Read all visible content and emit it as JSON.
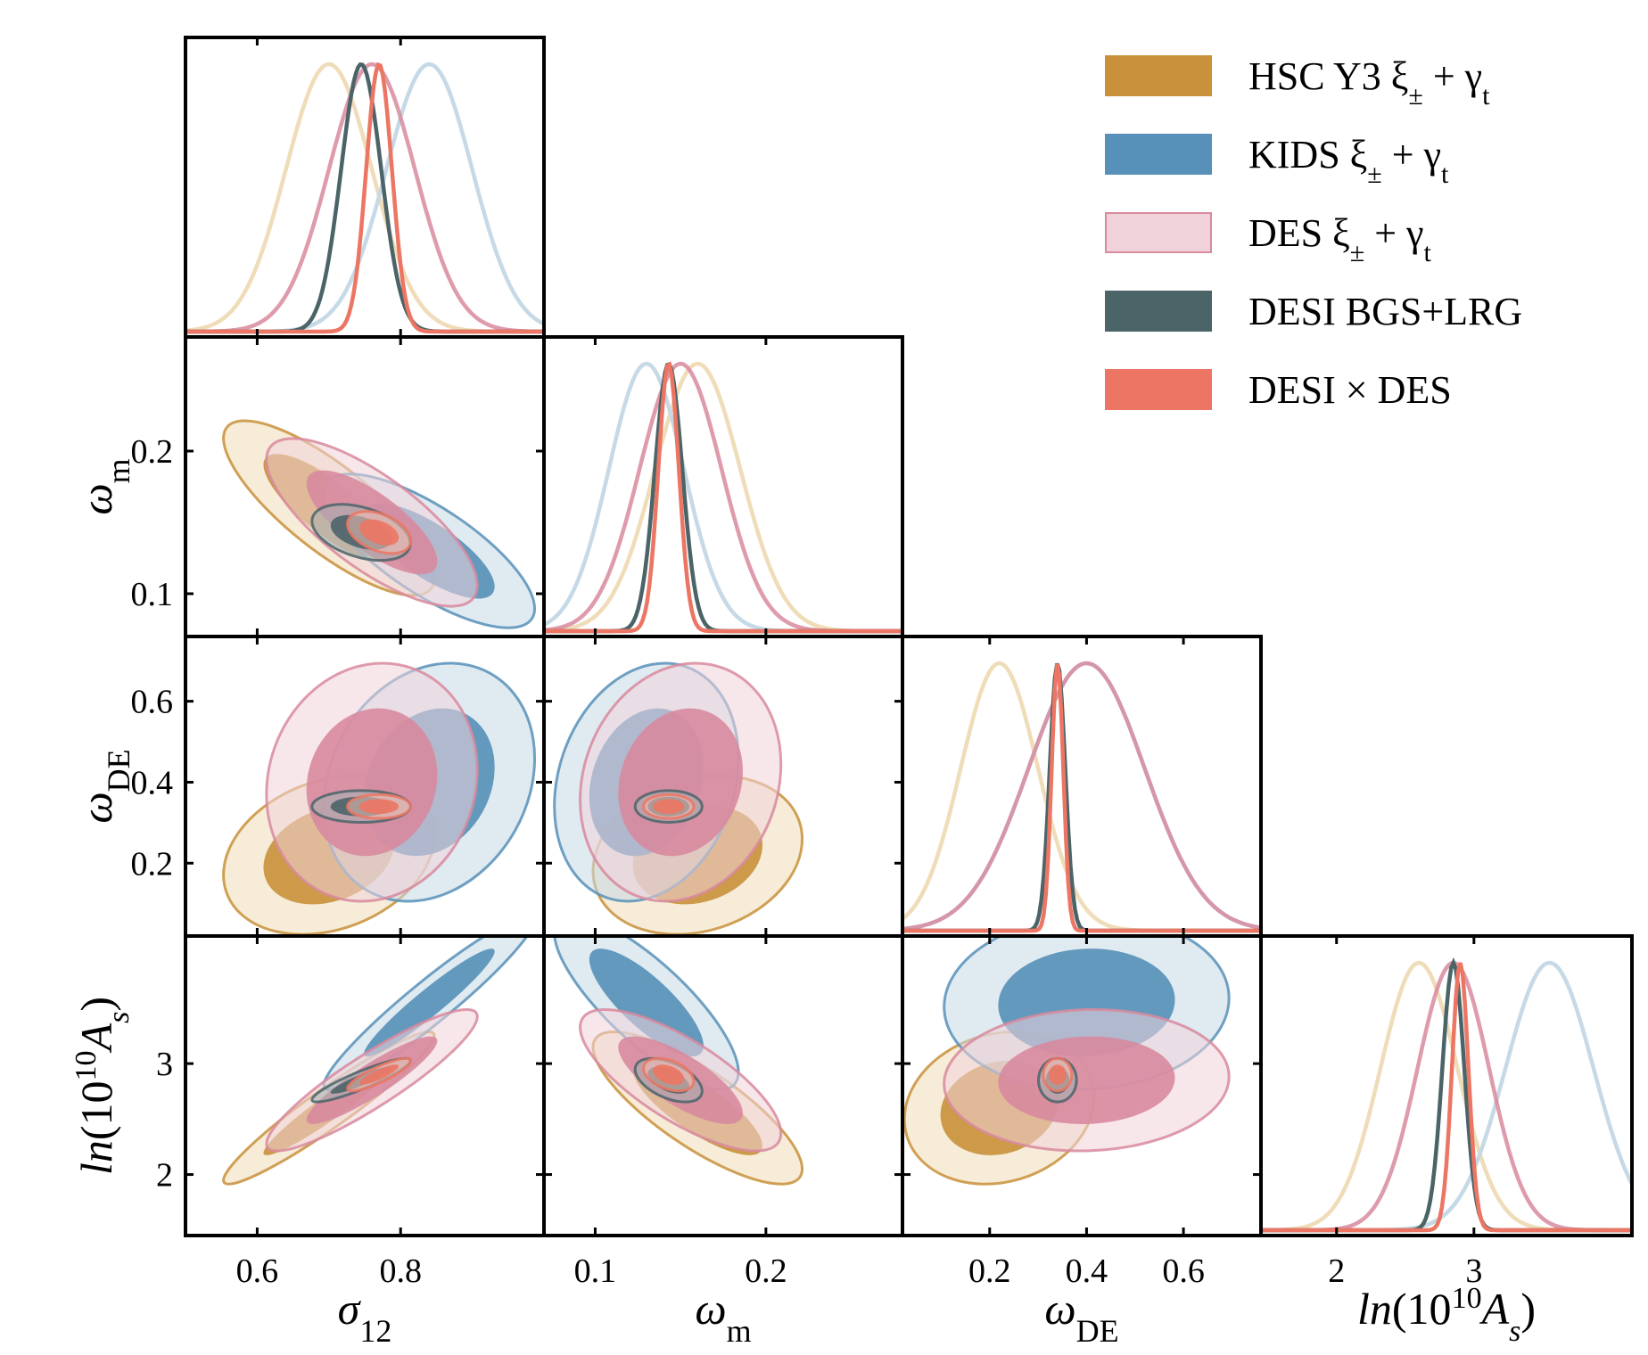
{
  "chart_data": {
    "type": "corner",
    "title": "",
    "parameters": [
      {
        "key": "s12",
        "label_main": "σ",
        "label_sub": "12",
        "range": [
          0.5,
          1.0
        ],
        "ticks": [
          0.6,
          0.8
        ],
        "tick_labels": [
          "0.6",
          "0.8"
        ]
      },
      {
        "key": "om",
        "label_main": "ω",
        "label_sub": "m",
        "range": [
          0.07,
          0.28
        ],
        "ticks": [
          0.1,
          0.2
        ],
        "tick_labels": [
          "0.1",
          "0.2"
        ]
      },
      {
        "key": "ode",
        "label_main": "ω",
        "label_sub": "DE",
        "range": [
          0.02,
          0.76
        ],
        "ticks": [
          0.2,
          0.4,
          0.6
        ],
        "tick_labels": [
          "0.2",
          "0.4",
          "0.6"
        ]
      },
      {
        "key": "lnAs",
        "label_main": "ln(10",
        "label_sup": "10",
        "label_tail": "A",
        "label_sub": "s",
        "label_close": ")",
        "range": [
          1.45,
          4.15
        ],
        "ticks": [
          2,
          3
        ],
        "tick_labels": [
          "2",
          "3"
        ]
      }
    ],
    "series": [
      {
        "name": "HSC Y3 ξ± + γt",
        "legend_main": "HSC Y3 ξ",
        "legend_sub": "±",
        "legend_mid": " + γ",
        "legend_sub2": "t",
        "color": "#c8913a",
        "light": "#efdcb8",
        "mean": [
          0.7,
          0.16,
          0.22,
          2.6
        ],
        "sd": [
          0.06,
          0.025,
          0.08,
          0.28
        ],
        "corr": {
          "s12-om": -0.8,
          "s12-ode": 0.25,
          "s12-lnAs": 0.95,
          "om-ode": 0.2,
          "om-lnAs": -0.8,
          "ode-lnAs": 0.15
        }
      },
      {
        "name": "KIDS ξ± + γt",
        "legend_main": "KIDS ξ",
        "legend_sub": "±",
        "legend_mid": " + γ",
        "legend_sub2": "t",
        "color": "#5790b8",
        "light": "#c6d9e6",
        "mean": [
          0.84,
          0.13,
          0.4,
          3.55
        ],
        "sd": [
          0.06,
          0.022,
          0.12,
          0.32
        ],
        "corr": {
          "s12-om": -0.75,
          "s12-ode": 0.2,
          "s12-lnAs": 0.95,
          "om-ode": 0.2,
          "om-lnAs": -0.8,
          "ode-lnAs": 0.05
        }
      },
      {
        "name": "DES ξ± + γt",
        "legend_main": "DES ξ",
        "legend_sub": "±",
        "legend_mid": " + γ",
        "legend_sub2": "t",
        "color": "#d88a9e",
        "light": "#f0d3da",
        "mean": [
          0.76,
          0.15,
          0.4,
          2.85
        ],
        "sd": [
          0.06,
          0.024,
          0.12,
          0.26
        ],
        "corr": {
          "s12-om": -0.75,
          "s12-ode": 0.1,
          "s12-lnAs": 0.9,
          "om-ode": 0.15,
          "om-lnAs": -0.75,
          "ode-lnAs": 0.05
        }
      },
      {
        "name": "DESI BGS+LRG",
        "legend_main": "DESI BGS+LRG",
        "color": "#4b6468",
        "light": "#a3b2b4",
        "mean": [
          0.745,
          0.143,
          0.34,
          2.85
        ],
        "sd": [
          0.028,
          0.008,
          0.016,
          0.08
        ],
        "corr": {
          "s12-om": -0.4,
          "s12-ode": 0.0,
          "s12-lnAs": 0.9,
          "om-ode": 0.0,
          "om-lnAs": -0.5,
          "ode-lnAs": 0.0
        }
      },
      {
        "name": "DESI × DES",
        "legend_main": "DESI × DES",
        "color": "#ec7563",
        "light": "#f6c0b5",
        "mean": [
          0.77,
          0.143,
          0.34,
          2.9
        ],
        "sd": [
          0.018,
          0.006,
          0.012,
          0.06
        ],
        "corr": {
          "s12-om": -0.4,
          "s12-ode": 0.0,
          "s12-lnAs": 0.85,
          "om-ode": 0.0,
          "om-lnAs": -0.4,
          "ode-lnAs": 0.0
        }
      }
    ],
    "legend_position": "top-right",
    "grid": false
  }
}
